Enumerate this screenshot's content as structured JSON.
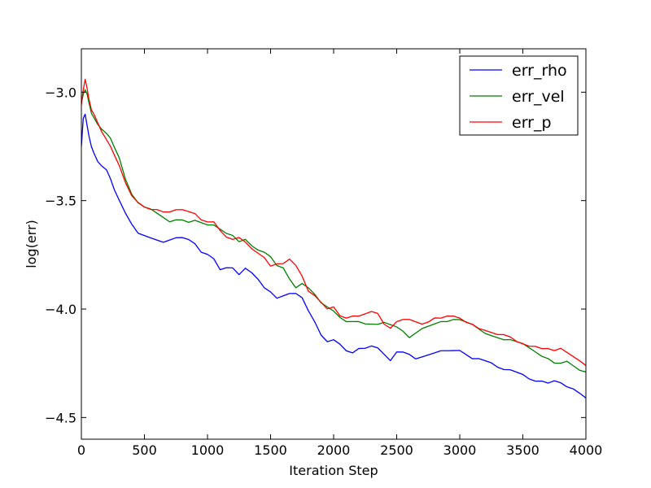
{
  "chart_data": {
    "type": "line",
    "title": "",
    "xlabel": "Iteration Step",
    "ylabel": "log(err)",
    "xlim": [
      0,
      4000
    ],
    "ylim": [
      -4.6,
      -2.8
    ],
    "xticks": [
      0,
      500,
      1000,
      1500,
      2000,
      2500,
      3000,
      3500,
      4000
    ],
    "xtick_labels": [
      "0",
      "500",
      "1000",
      "1500",
      "2000",
      "2500",
      "3000",
      "3500",
      "4000"
    ],
    "yticks": [
      -4.5,
      -4.0,
      -3.5,
      -3.0
    ],
    "ytick_labels": [
      "−4.5",
      "−4.0",
      "−3.5",
      "−3.0"
    ],
    "grid": false,
    "legend": "top-right",
    "series": [
      {
        "name": "err_rho",
        "color": "#0000ff",
        "x": [
          0,
          15,
          30,
          45,
          60,
          80,
          100,
          130,
          160,
          200,
          230,
          260,
          300,
          350,
          400,
          450,
          500,
          550,
          600,
          650,
          700,
          750,
          800,
          850,
          900,
          950,
          1000,
          1050,
          1100,
          1150,
          1200,
          1250,
          1300,
          1350,
          1400,
          1450,
          1500,
          1550,
          1600,
          1650,
          1700,
          1750,
          1800,
          1850,
          1900,
          1950,
          2000,
          2050,
          2100,
          2150,
          2200,
          2250,
          2300,
          2350,
          2400,
          2450,
          2500,
          2550,
          2600,
          2650,
          2700,
          2750,
          2800,
          2850,
          2900,
          2950,
          3000,
          3050,
          3100,
          3150,
          3200,
          3250,
          3300,
          3350,
          3400,
          3450,
          3500,
          3550,
          3600,
          3650,
          3700,
          3750,
          3800,
          3850,
          3900,
          3950,
          4000
        ],
        "values": [
          -3.25,
          -3.12,
          -3.1,
          -3.15,
          -3.2,
          -3.25,
          -3.28,
          -3.32,
          -3.34,
          -3.36,
          -3.4,
          -3.45,
          -3.5,
          -3.56,
          -3.61,
          -3.65,
          -3.66,
          -3.67,
          -3.68,
          -3.69,
          -3.68,
          -3.67,
          -3.67,
          -3.68,
          -3.7,
          -3.74,
          -3.75,
          -3.77,
          -3.82,
          -3.81,
          -3.81,
          -3.84,
          -3.81,
          -3.83,
          -3.86,
          -3.9,
          -3.92,
          -3.95,
          -3.94,
          -3.93,
          -3.93,
          -3.95,
          -4.01,
          -4.06,
          -4.12,
          -4.15,
          -4.14,
          -4.16,
          -4.19,
          -4.2,
          -4.18,
          -4.18,
          -4.17,
          -4.18,
          -4.21,
          -4.24,
          -4.2,
          -4.2,
          -4.21,
          -4.23,
          -4.22,
          -4.21,
          -4.2,
          -4.19,
          -4.19,
          -4.19,
          -4.19,
          -4.21,
          -4.23,
          -4.23,
          -4.24,
          -4.25,
          -4.27,
          -4.28,
          -4.28,
          -4.29,
          -4.3,
          -4.32,
          -4.33,
          -4.33,
          -4.34,
          -4.33,
          -4.34,
          -4.36,
          -4.37,
          -4.39,
          -4.41
        ]
      },
      {
        "name": "err_vel",
        "color": "#008000",
        "x": [
          0,
          15,
          30,
          45,
          60,
          80,
          100,
          130,
          160,
          200,
          230,
          260,
          300,
          350,
          400,
          450,
          500,
          550,
          600,
          650,
          700,
          750,
          800,
          850,
          900,
          950,
          1000,
          1050,
          1100,
          1150,
          1200,
          1250,
          1300,
          1350,
          1400,
          1450,
          1500,
          1550,
          1600,
          1650,
          1700,
          1750,
          1800,
          1850,
          1900,
          1950,
          2000,
          2050,
          2100,
          2150,
          2200,
          2250,
          2300,
          2350,
          2400,
          2450,
          2500,
          2550,
          2600,
          2650,
          2700,
          2750,
          2800,
          2850,
          2900,
          2950,
          3000,
          3050,
          3100,
          3150,
          3200,
          3250,
          3300,
          3350,
          3400,
          3450,
          3500,
          3550,
          3600,
          3650,
          3700,
          3750,
          3800,
          3850,
          3900,
          3950,
          4000
        ],
        "values": [
          -3.05,
          -3.01,
          -2.99,
          -3.01,
          -3.05,
          -3.1,
          -3.12,
          -3.15,
          -3.17,
          -3.19,
          -3.21,
          -3.25,
          -3.3,
          -3.4,
          -3.47,
          -3.51,
          -3.53,
          -3.54,
          -3.56,
          -3.58,
          -3.6,
          -3.59,
          -3.59,
          -3.6,
          -3.59,
          -3.6,
          -3.61,
          -3.61,
          -3.63,
          -3.65,
          -3.66,
          -3.69,
          -3.68,
          -3.71,
          -3.73,
          -3.74,
          -3.76,
          -3.8,
          -3.81,
          -3.86,
          -3.9,
          -3.88,
          -3.9,
          -3.93,
          -3.97,
          -3.99,
          -4.01,
          -4.04,
          -4.06,
          -4.06,
          -4.06,
          -4.07,
          -4.07,
          -4.07,
          -4.06,
          -4.07,
          -4.08,
          -4.1,
          -4.13,
          -4.11,
          -4.09,
          -4.08,
          -4.07,
          -4.06,
          -4.06,
          -4.05,
          -4.05,
          -4.06,
          -4.07,
          -4.09,
          -4.11,
          -4.12,
          -4.13,
          -4.14,
          -4.14,
          -4.15,
          -4.16,
          -4.18,
          -4.2,
          -4.22,
          -4.23,
          -4.25,
          -4.25,
          -4.24,
          -4.26,
          -4.28,
          -4.29
        ]
      },
      {
        "name": "err_p",
        "color": "#ff0000",
        "x": [
          0,
          15,
          30,
          45,
          60,
          80,
          100,
          130,
          160,
          200,
          230,
          260,
          300,
          350,
          400,
          450,
          500,
          550,
          600,
          650,
          700,
          750,
          800,
          850,
          900,
          950,
          1000,
          1050,
          1100,
          1150,
          1200,
          1250,
          1300,
          1350,
          1400,
          1450,
          1500,
          1550,
          1600,
          1650,
          1700,
          1750,
          1800,
          1850,
          1900,
          1950,
          2000,
          2050,
          2100,
          2150,
          2200,
          2250,
          2300,
          2350,
          2400,
          2450,
          2500,
          2550,
          2600,
          2650,
          2700,
          2750,
          2800,
          2850,
          2900,
          2950,
          3000,
          3050,
          3100,
          3150,
          3200,
          3250,
          3300,
          3350,
          3400,
          3450,
          3500,
          3550,
          3600,
          3650,
          3700,
          3750,
          3800,
          3850,
          3900,
          3950,
          4000
        ],
        "values": [
          -3.06,
          -2.99,
          -2.94,
          -2.98,
          -3.03,
          -3.08,
          -3.1,
          -3.14,
          -3.18,
          -3.22,
          -3.25,
          -3.29,
          -3.34,
          -3.42,
          -3.48,
          -3.51,
          -3.53,
          -3.54,
          -3.54,
          -3.55,
          -3.55,
          -3.54,
          -3.54,
          -3.55,
          -3.56,
          -3.59,
          -3.6,
          -3.6,
          -3.64,
          -3.67,
          -3.68,
          -3.67,
          -3.69,
          -3.72,
          -3.74,
          -3.76,
          -3.8,
          -3.79,
          -3.79,
          -3.77,
          -3.8,
          -3.85,
          -3.92,
          -3.94,
          -3.97,
          -4.0,
          -3.99,
          -4.03,
          -4.04,
          -4.03,
          -4.03,
          -4.02,
          -4.01,
          -4.02,
          -4.07,
          -4.09,
          -4.06,
          -4.05,
          -4.05,
          -4.06,
          -4.07,
          -4.06,
          -4.04,
          -4.04,
          -4.03,
          -4.03,
          -4.04,
          -4.06,
          -4.07,
          -4.09,
          -4.1,
          -4.11,
          -4.12,
          -4.12,
          -4.13,
          -4.15,
          -4.16,
          -4.17,
          -4.17,
          -4.18,
          -4.18,
          -4.19,
          -4.18,
          -4.2,
          -4.22,
          -4.24,
          -4.26
        ]
      }
    ]
  }
}
